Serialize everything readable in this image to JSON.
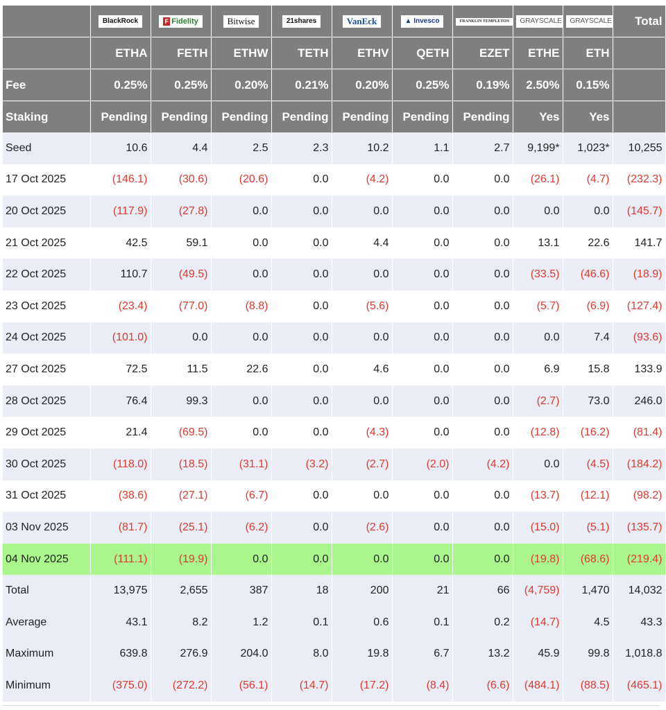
{
  "issuers": [
    {
      "logo": "BlackRock",
      "ticker": "ETHA",
      "fee": "0.25%",
      "staking": "Pending"
    },
    {
      "logo": "Fidelity",
      "ticker": "FETH",
      "fee": "0.25%",
      "staking": "Pending"
    },
    {
      "logo": "Bitwise",
      "ticker": "ETHW",
      "fee": "0.20%",
      "staking": "Pending"
    },
    {
      "logo": "21shares",
      "ticker": "TETH",
      "fee": "0.21%",
      "staking": "Pending"
    },
    {
      "logo": "VanEck",
      "ticker": "ETHV",
      "fee": "0.20%",
      "staking": "Pending"
    },
    {
      "logo": "Invesco",
      "ticker": "QETH",
      "fee": "0.25%",
      "staking": "Pending"
    },
    {
      "logo": "FRANKLIN TEMPLETON",
      "ticker": "EZET",
      "fee": "0.19%",
      "staking": "Pending"
    },
    {
      "logo": "GRAYSCALE",
      "ticker": "ETHE",
      "fee": "2.50%",
      "staking": "Yes"
    },
    {
      "logo": "GRAYSCALE",
      "ticker": "ETH",
      "fee": "0.15%",
      "staking": "Yes"
    }
  ],
  "header": {
    "total_label": "Total",
    "fee_label": "Fee",
    "staking_label": "Staking"
  },
  "rows": [
    {
      "label": "Seed",
      "values": [
        "10.6",
        "4.4",
        "2.5",
        "2.3",
        "10.2",
        "1.1",
        "2.7",
        "9,199*",
        "1,023*",
        "10,255"
      ]
    },
    {
      "label": "17 Oct 2025",
      "values": [
        "(146.1)",
        "(30.6)",
        "(20.6)",
        "0.0",
        "(4.2)",
        "0.0",
        "0.0",
        "(26.1)",
        "(4.7)",
        "(232.3)"
      ]
    },
    {
      "label": "20 Oct 2025",
      "values": [
        "(117.9)",
        "(27.8)",
        "0.0",
        "0.0",
        "0.0",
        "0.0",
        "0.0",
        "0.0",
        "0.0",
        "(145.7)"
      ]
    },
    {
      "label": "21 Oct 2025",
      "values": [
        "42.5",
        "59.1",
        "0.0",
        "0.0",
        "4.4",
        "0.0",
        "0.0",
        "13.1",
        "22.6",
        "141.7"
      ]
    },
    {
      "label": "22 Oct 2025",
      "values": [
        "110.7",
        "(49.5)",
        "0.0",
        "0.0",
        "0.0",
        "0.0",
        "0.0",
        "(33.5)",
        "(46.6)",
        "(18.9)"
      ]
    },
    {
      "label": "23 Oct 2025",
      "values": [
        "(23.4)",
        "(77.0)",
        "(8.8)",
        "0.0",
        "(5.6)",
        "0.0",
        "0.0",
        "(5.7)",
        "(6.9)",
        "(127.4)"
      ]
    },
    {
      "label": "24 Oct 2025",
      "values": [
        "(101.0)",
        "0.0",
        "0.0",
        "0.0",
        "0.0",
        "0.0",
        "0.0",
        "0.0",
        "7.4",
        "(93.6)"
      ]
    },
    {
      "label": "27 Oct 2025",
      "values": [
        "72.5",
        "11.5",
        "22.6",
        "0.0",
        "4.6",
        "0.0",
        "0.0",
        "6.9",
        "15.8",
        "133.9"
      ]
    },
    {
      "label": "28 Oct 2025",
      "values": [
        "76.4",
        "99.3",
        "0.0",
        "0.0",
        "0.0",
        "0.0",
        "0.0",
        "(2.7)",
        "73.0",
        "246.0"
      ]
    },
    {
      "label": "29 Oct 2025",
      "values": [
        "21.4",
        "(69.5)",
        "0.0",
        "0.0",
        "(4.3)",
        "0.0",
        "0.0",
        "(12.8)",
        "(16.2)",
        "(81.4)"
      ]
    },
    {
      "label": "30 Oct 2025",
      "values": [
        "(118.0)",
        "(18.5)",
        "(31.1)",
        "(3.2)",
        "(2.7)",
        "(2.0)",
        "(4.2)",
        "0.0",
        "(4.5)",
        "(184.2)"
      ]
    },
    {
      "label": "31 Oct 2025",
      "values": [
        "(38.6)",
        "(27.1)",
        "(6.7)",
        "0.0",
        "0.0",
        "0.0",
        "0.0",
        "(13.7)",
        "(12.1)",
        "(98.2)"
      ]
    },
    {
      "label": "03 Nov 2025",
      "values": [
        "(81.7)",
        "(25.1)",
        "(6.2)",
        "0.0",
        "(2.6)",
        "0.0",
        "0.0",
        "(15.0)",
        "(5.1)",
        "(135.7)"
      ]
    },
    {
      "label": "04 Nov 2025",
      "values": [
        "(111.1)",
        "(19.9)",
        "0.0",
        "0.0",
        "0.0",
        "0.0",
        "0.0",
        "(19.8)",
        "(68.6)",
        "(219.4)"
      ],
      "highlight": true
    }
  ],
  "summary": [
    {
      "label": "Total",
      "values": [
        "13,975",
        "2,655",
        "387",
        "18",
        "200",
        "21",
        "66",
        "(4,759)",
        "1,470",
        "14,032"
      ]
    },
    {
      "label": "Average",
      "values": [
        "43.1",
        "8.2",
        "1.2",
        "0.1",
        "0.6",
        "0.1",
        "0.2",
        "(14.7)",
        "4.5",
        "43.3"
      ]
    },
    {
      "label": "Maximum",
      "values": [
        "639.8",
        "276.9",
        "204.0",
        "8.0",
        "19.8",
        "6.7",
        "13.2",
        "45.9",
        "99.8",
        "1,018.8"
      ]
    },
    {
      "label": "Minimum",
      "values": [
        "(375.0)",
        "(272.2)",
        "(56.1)",
        "(14.7)",
        "(17.2)",
        "(8.4)",
        "(6.6)",
        "(484.1)",
        "(88.5)",
        "(465.1)"
      ]
    }
  ],
  "colors": {
    "header_bg": "#7f7f7f",
    "row_alt_bg": "#eaedf6",
    "highlight_bg": "#aaf58c",
    "negative_text": "#e0382e"
  }
}
